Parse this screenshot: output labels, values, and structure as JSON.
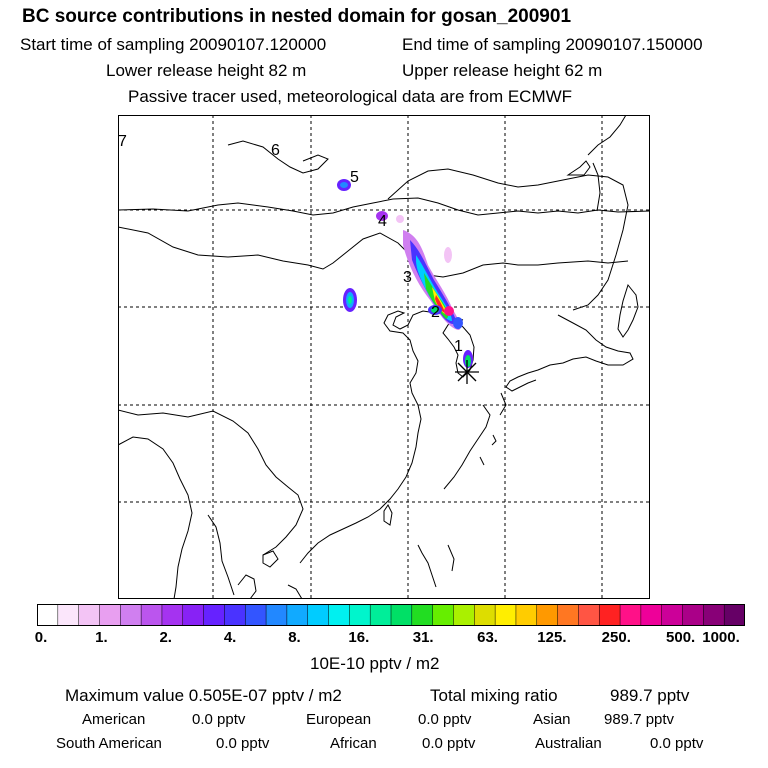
{
  "header": {
    "title": "BC  source contributions in nested domain for gosan_200901",
    "start_time": "Start time of sampling 20090107.120000",
    "end_time": "End time of sampling 20090107.150000",
    "lower_height": "Lower release height   82 m",
    "upper_height": "Upper release height   62 m",
    "tracer_note": "Passive tracer used, meteorological data are from ECMWF"
  },
  "map": {
    "trajectory_labels": [
      "7",
      "6",
      "5",
      "4",
      "3",
      "2",
      "1"
    ],
    "receptor_marker": "receptor-star"
  },
  "colorbar": {
    "ticks": [
      "0.",
      "1.",
      "2.",
      "4.",
      "8.",
      "16.",
      "31.",
      "63.",
      "125.",
      "250.",
      "500.",
      "1000."
    ],
    "units": "10E-10 pptv / m2",
    "colors": [
      "#ffffff",
      "#fbe6fb",
      "#f3c4f5",
      "#e89ff0",
      "#d07ff0",
      "#bb55ee",
      "#a533f0",
      "#8822f5",
      "#6622ff",
      "#4a33ff",
      "#3355ff",
      "#2288ff",
      "#11aaff",
      "#00ccff",
      "#00f0f0",
      "#00f5cc",
      "#00ee99",
      "#00e066",
      "#22dd22",
      "#66ee00",
      "#aaf000",
      "#dddd00",
      "#ffee00",
      "#ffcc00",
      "#ff9900",
      "#ff7722",
      "#ff5544",
      "#ff2222",
      "#ff1188",
      "#ee0099",
      "#cc0099",
      "#aa0088",
      "#880077",
      "#660066"
    ]
  },
  "summary": {
    "max_label": "Maximum value  0.505E-07 pptv / m2",
    "total_label": "Total mixing ratio",
    "total_value": "989.7 pptv",
    "regions": [
      {
        "name": "American",
        "value": "0.0 pptv"
      },
      {
        "name": "European",
        "value": "0.0 pptv"
      },
      {
        "name": "Asian",
        "value": "989.7 pptv"
      },
      {
        "name": "South American",
        "value": "0.0 pptv"
      },
      {
        "name": "African",
        "value": "0.0 pptv"
      },
      {
        "name": "Australian",
        "value": "0.0 pptv"
      }
    ]
  }
}
